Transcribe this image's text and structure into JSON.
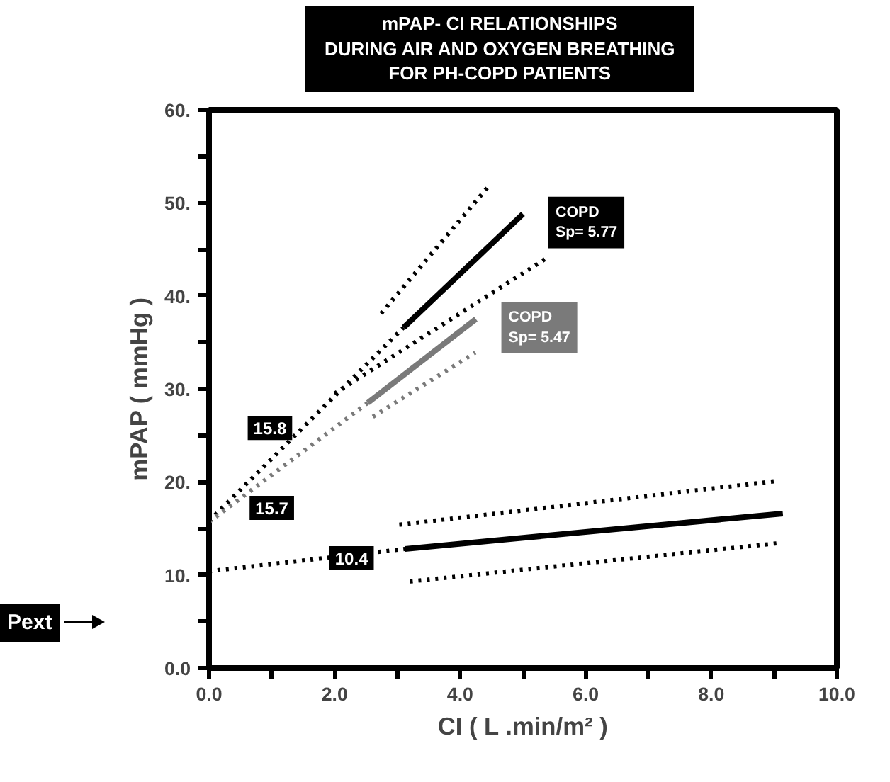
{
  "chart_data": {
    "type": "line",
    "title": "mPAP- CI  RELATIONSHIPS\nDURING AIR AND OXYGEN BREATHING\nFOR PH-COPD PATIENTS",
    "xlabel": "CI ( L .min/m² )",
    "ylabel": "mPAP ( mmHg )",
    "xlim": [
      0,
      10
    ],
    "ylim": [
      0,
      60
    ],
    "xticks": [
      {
        "value": 0,
        "label": "0.0"
      },
      {
        "value": 1,
        "label": null
      },
      {
        "value": 2,
        "label": "2.0"
      },
      {
        "value": 3,
        "label": null
      },
      {
        "value": 4,
        "label": "4.0"
      },
      {
        "value": 5,
        "label": null
      },
      {
        "value": 6,
        "label": "6.0"
      },
      {
        "value": 7,
        "label": null
      },
      {
        "value": 8,
        "label": "8.0"
      },
      {
        "value": 9,
        "label": null
      },
      {
        "value": 10,
        "label": "10.0"
      }
    ],
    "yticks": [
      {
        "value": 0,
        "label": "0.0"
      },
      {
        "value": 5,
        "label": null
      },
      {
        "value": 10,
        "label": "10."
      },
      {
        "value": 15,
        "label": null
      },
      {
        "value": 20,
        "label": "20."
      },
      {
        "value": 25,
        "label": null
      },
      {
        "value": 30,
        "label": "30."
      },
      {
        "value": 35,
        "label": null
      },
      {
        "value": 40,
        "label": "40."
      },
      {
        "value": 45,
        "label": null
      },
      {
        "value": 50,
        "label": "50."
      },
      {
        "value": 55,
        "label": null
      },
      {
        "value": 60,
        "label": "60."
      }
    ],
    "grid": false,
    "marker": "none",
    "series": [
      {
        "color": "#000000",
        "line_style": "dotted",
        "x": [
          0,
          3.1
        ],
        "values": [
          15.8,
          36.6
        ]
      },
      {
        "name": "COPD\nSp= 5.77",
        "color": "#000000",
        "line_style": "solid",
        "x": [
          3.1,
          5.0
        ],
        "values": [
          36.6,
          48.8
        ]
      },
      {
        "color": "#000000",
        "line_style": "dotted",
        "x": [
          2.74,
          4.43
        ],
        "values": [
          38.1,
          51.6
        ]
      },
      {
        "color": "#000000",
        "line_style": "dotted",
        "x": [
          2.0,
          5.41
        ],
        "values": [
          29.5,
          44.2
        ]
      },
      {
        "color": "#7a7a7a",
        "line_style": "dotted",
        "x": [
          0,
          2.53
        ],
        "values": [
          15.7,
          28.5
        ]
      },
      {
        "name": "COPD\nSp= 5.47",
        "color": "#7a7a7a",
        "line_style": "solid",
        "x": [
          2.53,
          4.25
        ],
        "values": [
          28.5,
          37.5
        ]
      },
      {
        "color": "#7a7a7a",
        "line_style": "dotted",
        "x": [
          2.61,
          4.24
        ],
        "values": [
          27.0,
          33.9
        ]
      },
      {
        "color": "#000000",
        "line_style": "dotted",
        "x": [
          0,
          3.12
        ],
        "values": [
          10.4,
          12.8
        ]
      },
      {
        "color": "#000000",
        "line_style": "solid",
        "x": [
          3.12,
          9.14
        ],
        "values": [
          12.8,
          16.6
        ]
      },
      {
        "color": "#000000",
        "line_style": "dotted",
        "x": [
          3.03,
          9.05
        ],
        "values": [
          15.4,
          20.1
        ]
      },
      {
        "color": "#000000",
        "line_style": "dotted",
        "x": [
          3.2,
          9.05
        ],
        "values": [
          9.3,
          13.4
        ]
      }
    ],
    "annotations": [
      {
        "text": "15.8",
        "x": 0.97,
        "y": 25.8
      },
      {
        "text": "15.7",
        "x": 1.0,
        "y": 17.2
      },
      {
        "text": "10.4",
        "x": 2.27,
        "y": 11.8
      },
      "Pext"
    ]
  }
}
